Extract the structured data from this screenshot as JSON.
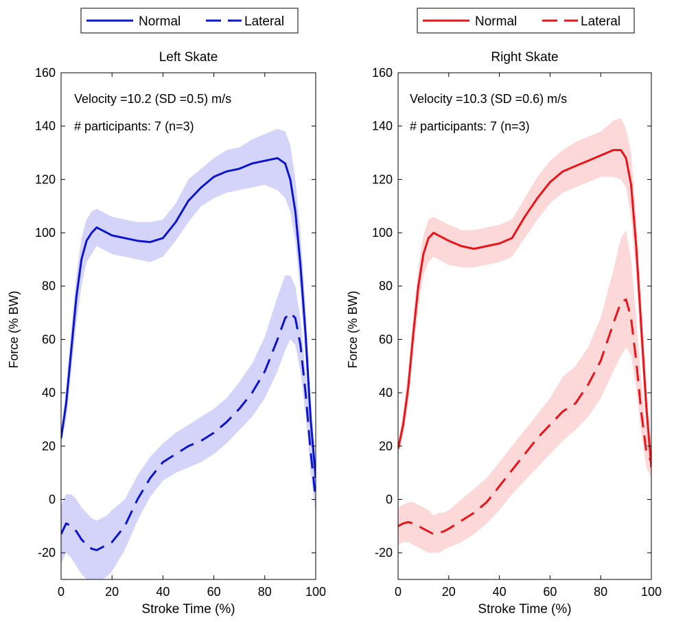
{
  "chart_data": [
    {
      "type": "line",
      "title": "Left Skate",
      "xlabel": "Stroke Time (%)",
      "ylabel": "Force (% BW)",
      "xlim": [
        0,
        100
      ],
      "ylim": [
        -30,
        160
      ],
      "xticks": [
        0,
        20,
        40,
        60,
        80,
        100
      ],
      "yticks": [
        -20,
        0,
        20,
        40,
        60,
        80,
        100,
        120,
        140,
        160
      ],
      "grid": false,
      "legend_position": "top",
      "annotations": [
        "Velocity =10.2 (SD =0.5) m/s",
        "# participants: 7 (n=3)"
      ],
      "color": "#0a14cc",
      "band_color": "#d4d4fb",
      "series": [
        {
          "name": "Normal",
          "style": "solid",
          "x": [
            0,
            2,
            4,
            6,
            8,
            10,
            12,
            14,
            16,
            18,
            20,
            25,
            30,
            35,
            40,
            45,
            50,
            55,
            60,
            65,
            70,
            75,
            80,
            85,
            88,
            90,
            92,
            94,
            96,
            98,
            100
          ],
          "y": [
            23,
            36,
            56,
            76,
            90,
            97,
            100,
            102,
            101,
            100,
            99,
            98,
            97,
            96.5,
            98,
            104,
            112,
            117,
            121,
            123,
            124,
            126,
            127,
            128,
            126,
            120,
            108,
            88,
            62,
            30,
            8
          ],
          "lower": [
            21,
            30,
            48,
            66,
            80,
            89,
            92,
            95,
            94,
            93,
            92,
            91,
            90,
            89,
            91,
            97,
            104,
            110,
            113,
            115,
            116,
            117,
            118,
            116,
            113,
            108,
            97,
            78,
            52,
            22,
            2
          ],
          "upper": [
            25,
            42,
            64,
            84,
            98,
            105,
            108,
            109,
            108,
            107,
            106,
            105,
            104,
            104,
            105,
            111,
            120,
            124,
            128,
            131,
            132,
            135,
            137,
            139,
            138,
            133,
            120,
            100,
            72,
            38,
            14
          ]
        },
        {
          "name": "Lateral",
          "style": "dashed",
          "x": [
            0,
            2,
            4,
            6,
            8,
            10,
            12,
            14,
            16,
            18,
            20,
            25,
            30,
            35,
            40,
            45,
            50,
            55,
            60,
            65,
            70,
            75,
            80,
            85,
            88,
            90,
            92,
            94,
            96,
            98,
            100
          ],
          "y": [
            -13,
            -9,
            -10,
            -12,
            -15,
            -17,
            -18.5,
            -19,
            -18,
            -17,
            -16,
            -10,
            0,
            8,
            14,
            17,
            20,
            22,
            25,
            29,
            34,
            40,
            48,
            60,
            68,
            70,
            68,
            58,
            40,
            18,
            0
          ],
          "lower": [
            -24,
            -20,
            -22,
            -25,
            -28,
            -30,
            -31,
            -31,
            -30,
            -29,
            -27,
            -19,
            -8,
            1,
            7,
            10,
            12,
            14,
            17,
            21,
            26,
            31,
            38,
            48,
            56,
            60,
            58,
            48,
            32,
            10,
            -6
          ],
          "upper": [
            -2,
            2,
            2,
            0,
            -3,
            -5,
            -7,
            -8,
            -7,
            -6,
            -4,
            0,
            9,
            16,
            21,
            25,
            28,
            31,
            34,
            38,
            44,
            51,
            61,
            76,
            84,
            84,
            80,
            68,
            48,
            26,
            6
          ]
        }
      ]
    },
    {
      "type": "line",
      "title": "Right Skate",
      "xlabel": "Stroke Time (%)",
      "ylabel": "Force (% BW)",
      "xlim": [
        0,
        100
      ],
      "ylim": [
        -30,
        160
      ],
      "xticks": [
        0,
        20,
        40,
        60,
        80,
        100
      ],
      "yticks": [
        -20,
        0,
        20,
        40,
        60,
        80,
        100,
        120,
        140,
        160
      ],
      "grid": false,
      "legend_position": "top",
      "annotations": [
        "Velocity =10.3 (SD =0.6) m/s",
        "# participants: 7 (n=3)"
      ],
      "color": "#e8141a",
      "band_color": "#fcd8d8",
      "series": [
        {
          "name": "Normal",
          "style": "solid",
          "x": [
            0,
            2,
            4,
            6,
            8,
            10,
            12,
            14,
            16,
            18,
            20,
            25,
            30,
            35,
            40,
            45,
            50,
            55,
            60,
            65,
            70,
            75,
            80,
            85,
            88,
            90,
            92,
            94,
            96,
            98,
            100
          ],
          "y": [
            19,
            28,
            42,
            62,
            80,
            92,
            98,
            100,
            99,
            98,
            97,
            95,
            94,
            95,
            96,
            98,
            106,
            113,
            119,
            123,
            125,
            127,
            129,
            131,
            131,
            128,
            118,
            95,
            65,
            35,
            12
          ],
          "lower": [
            17,
            24,
            36,
            55,
            72,
            84,
            89,
            91,
            90,
            89,
            88,
            87,
            87,
            88,
            89,
            91,
            98,
            105,
            111,
            115,
            117,
            119,
            121,
            121,
            120,
            117,
            106,
            84,
            55,
            27,
            8
          ],
          "upper": [
            21,
            33,
            48,
            69,
            87,
            99,
            105,
            106,
            105,
            104,
            103,
            101,
            101,
            102,
            103,
            105,
            113,
            121,
            127,
            131,
            134,
            136,
            138,
            142,
            143,
            139,
            130,
            106,
            75,
            44,
            17
          ]
        },
        {
          "name": "Lateral",
          "style": "dashed",
          "x": [
            0,
            2,
            4,
            6,
            8,
            10,
            12,
            14,
            16,
            18,
            20,
            25,
            30,
            35,
            40,
            45,
            50,
            55,
            60,
            65,
            70,
            75,
            80,
            85,
            88,
            90,
            92,
            94,
            96,
            98,
            100
          ],
          "y": [
            -10,
            -9,
            -8.5,
            -9,
            -10,
            -11,
            -12,
            -13,
            -12.5,
            -12,
            -11,
            -8,
            -5,
            -1,
            5,
            11,
            17,
            23,
            28,
            33,
            36,
            43,
            52,
            66,
            74,
            75,
            68,
            52,
            33,
            18,
            14
          ],
          "lower": [
            -17,
            -16,
            -16,
            -17,
            -18,
            -19,
            -20,
            -20,
            -20,
            -19,
            -18,
            -16,
            -13,
            -9,
            -4,
            2,
            7,
            12,
            17,
            22,
            26,
            31,
            38,
            48,
            54,
            57,
            54,
            42,
            25,
            12,
            8
          ],
          "upper": [
            -3,
            -2,
            -1,
            -1,
            -2,
            -3,
            -4,
            -6,
            -5,
            -5,
            -4,
            0,
            4,
            8,
            14,
            20,
            26,
            32,
            38,
            46,
            50,
            57,
            68,
            86,
            98,
            101,
            90,
            68,
            45,
            26,
            20
          ]
        }
      ]
    }
  ]
}
